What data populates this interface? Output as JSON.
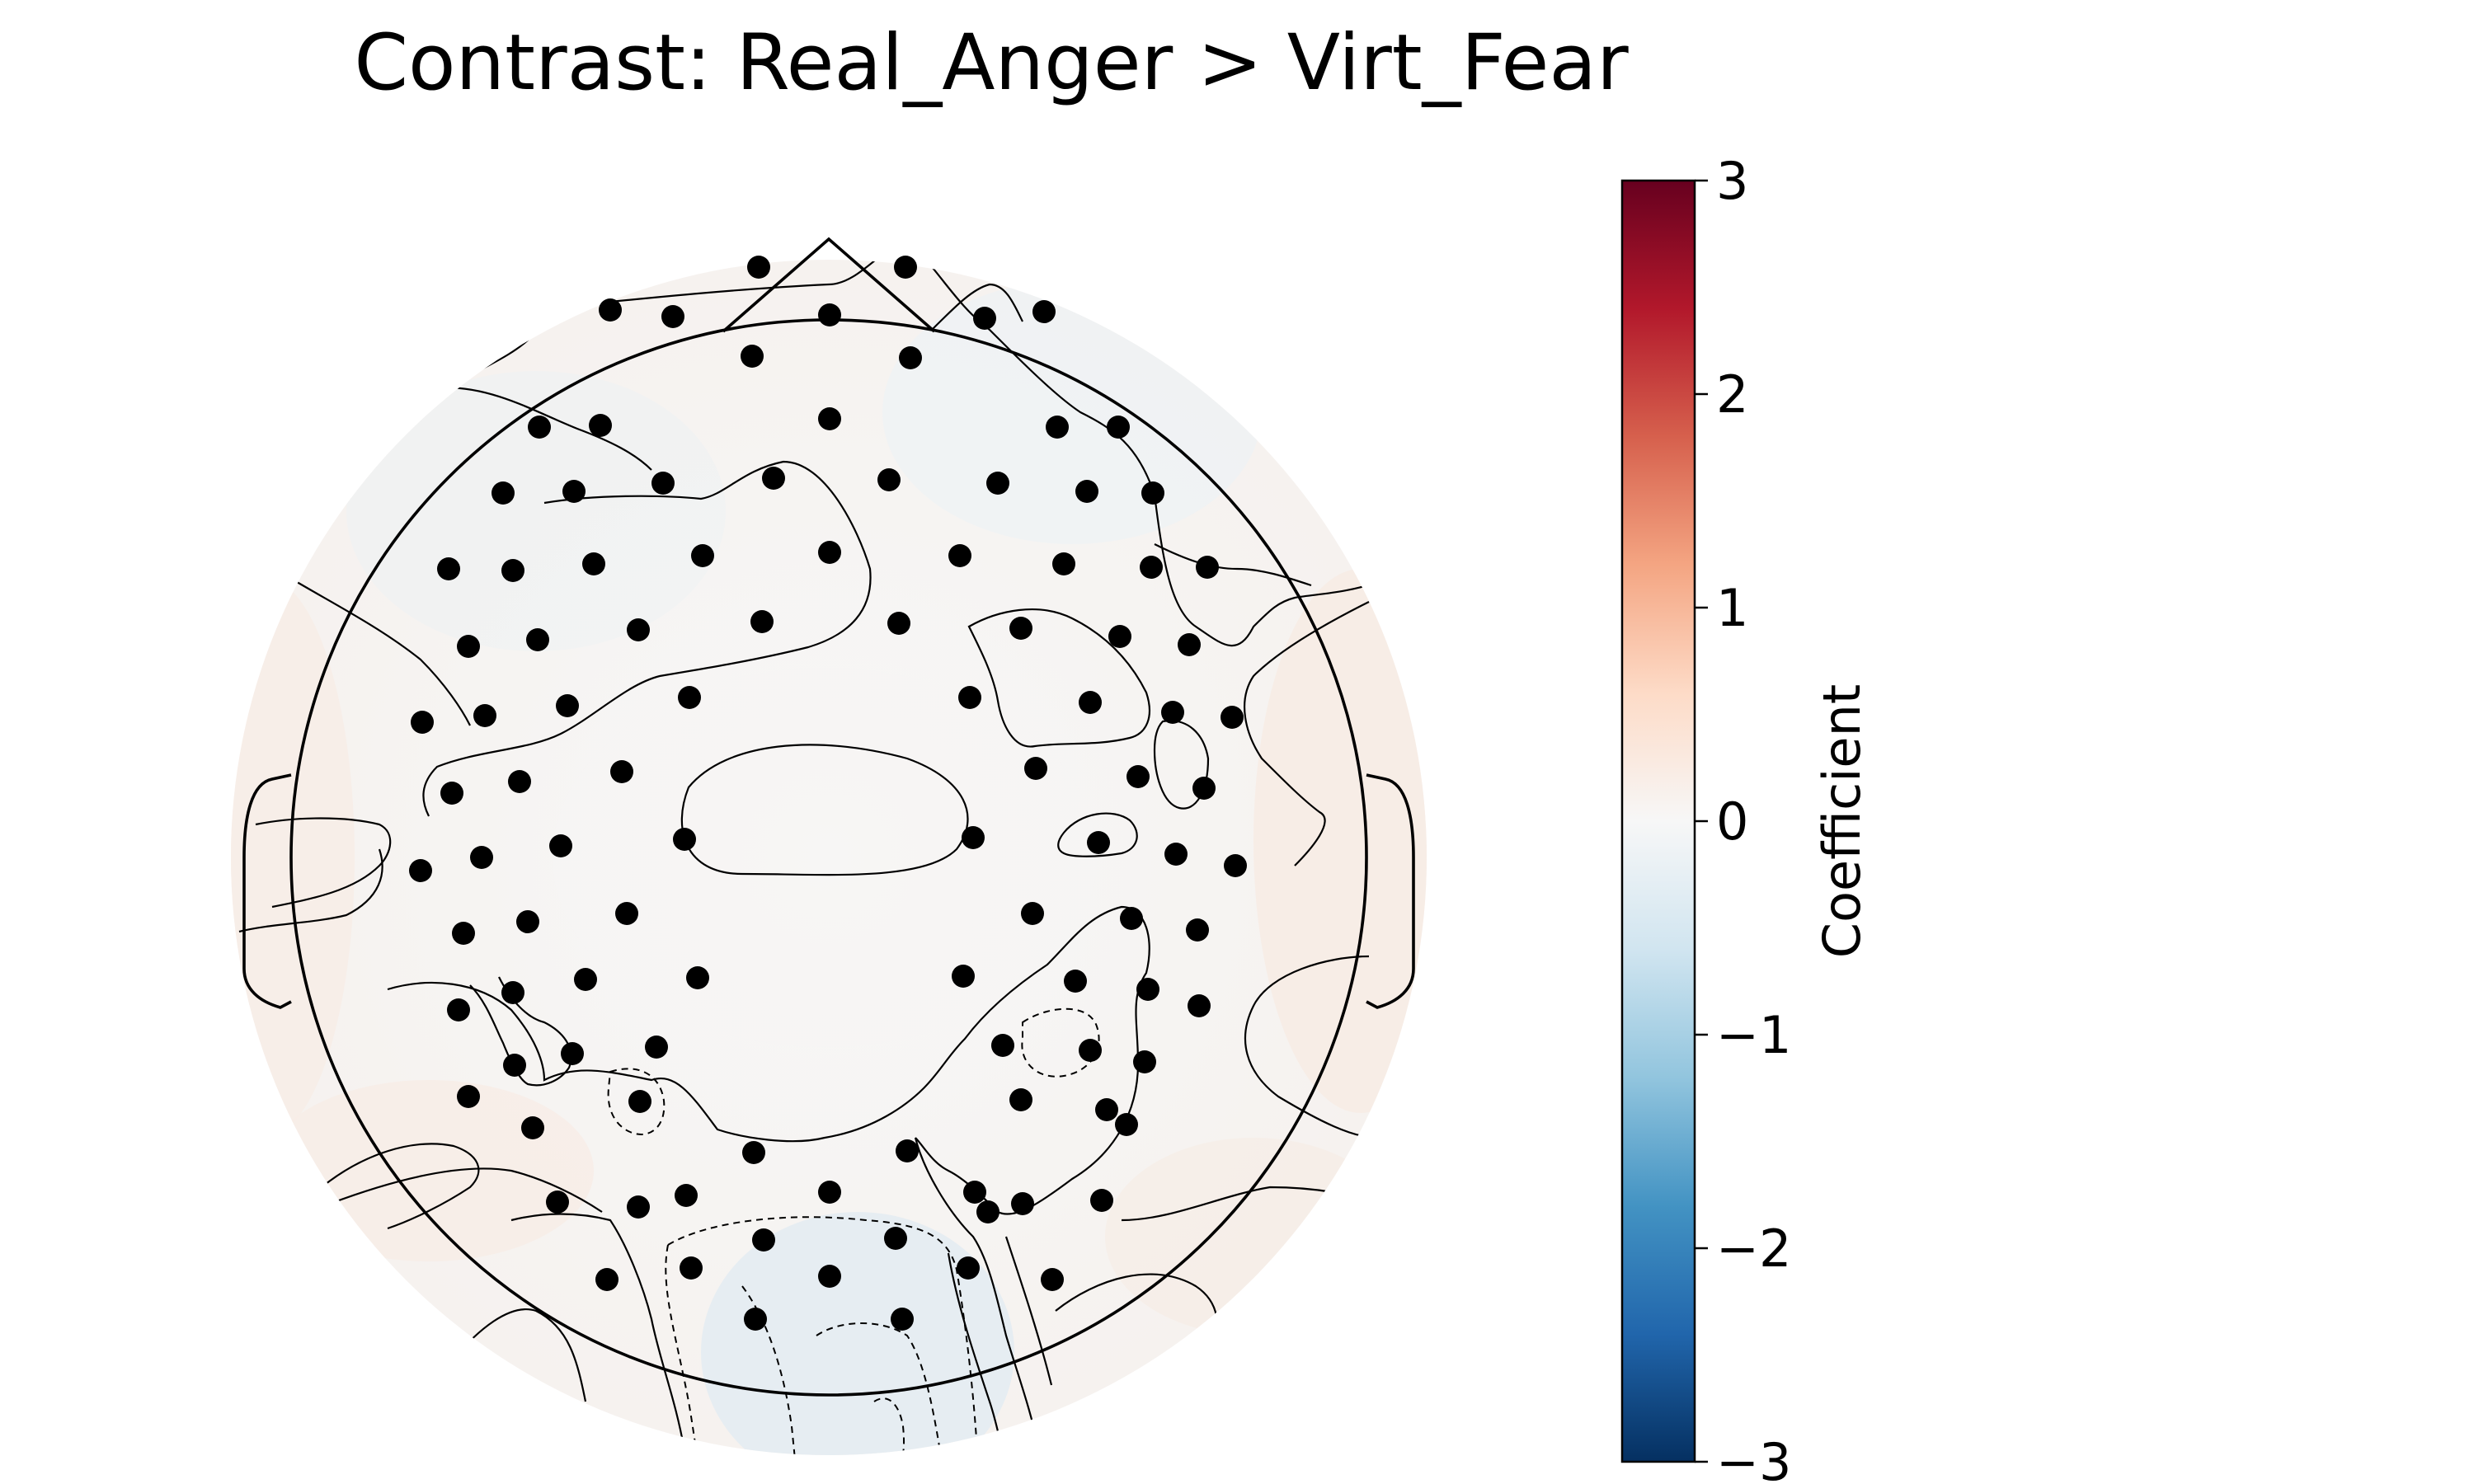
{
  "chart_data": {
    "type": "heatmap",
    "title": "Contrast: Real_Anger > Virt_Fear",
    "colorbar": {
      "label": "Coefficient",
      "range": [
        -3,
        3
      ],
      "ticks": [
        3,
        2,
        1,
        0,
        -1,
        -2,
        -3
      ],
      "tick_labels": [
        "3",
        "2",
        "1",
        "0",
        "−1",
        "−2",
        "−3"
      ],
      "colormap": "RdBu_r",
      "colors": [
        "#053061",
        "#2166ac",
        "#4393c3",
        "#92c5de",
        "#d1e5f0",
        "#f7f7f7",
        "#fddbc7",
        "#f4a582",
        "#d6604d",
        "#b2182b",
        "#67001f"
      ]
    },
    "sensor_count": 128,
    "sensor_color": "#000000"
  }
}
